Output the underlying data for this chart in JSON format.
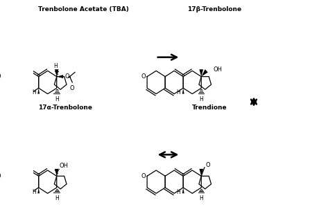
{
  "background_color": "#ffffff",
  "labels": {
    "TBA": "Trenbolone Acetate (TBA)",
    "beta": "17β-Trenbolone",
    "alpha": "17α-Trenbolone",
    "trendione": "Trendione"
  },
  "figsize": [
    4.73,
    3.12
  ],
  "dpi": 100
}
